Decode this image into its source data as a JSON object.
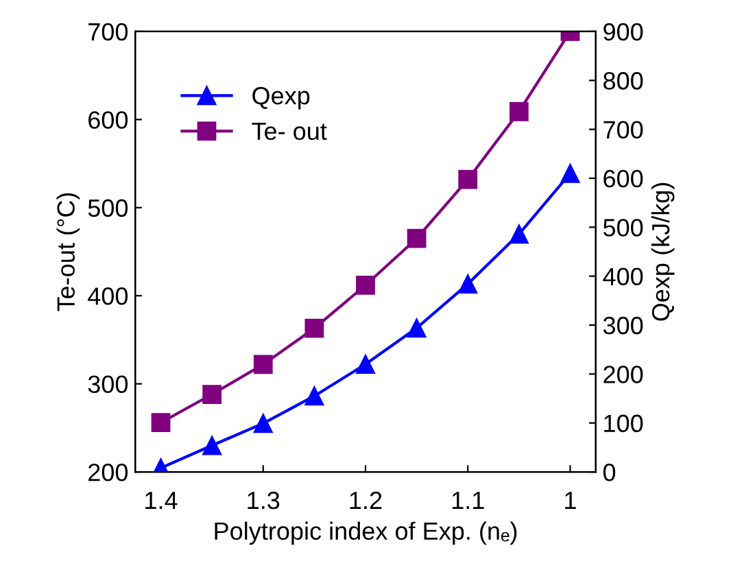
{
  "chart_data": {
    "type": "line",
    "xlabel": "Polytropic index of Exp. (nₑ)",
    "ylabel": "Te-out (°C)",
    "y2label": "Qexp (kJ/kg)",
    "x": [
      1.4,
      1.35,
      1.3,
      1.25,
      1.2,
      1.15,
      1.1,
      1.05,
      1.0
    ],
    "xlim": [
      1.425,
      0.975
    ],
    "xticks": [
      1.4,
      1.3,
      1.2,
      {
        "value": 1.1,
        "label": "1.1"
      },
      {
        "value": 1.0,
        "label": "1"
      }
    ],
    "ylim": [
      200,
      700
    ],
    "yticks": [
      200,
      300,
      400,
      500,
      600,
      700
    ],
    "y2lim": [
      0,
      900
    ],
    "y2ticks": [
      0,
      100,
      200,
      300,
      400,
      500,
      600,
      700,
      800,
      900
    ],
    "series": [
      {
        "name": "Qexp",
        "color": "#0000ff",
        "axis": "y2",
        "marker": "triangle",
        "values": [
          8,
          54,
          99,
          155,
          220,
          294,
          384,
          486,
          610
        ]
      },
      {
        "name": "Te- out",
        "color": "#800080",
        "marker": "square",
        "values": [
          256,
          288,
          322,
          363,
          412,
          465,
          532,
          609,
          700
        ]
      }
    ],
    "legend": "top left",
    "grid": false
  }
}
